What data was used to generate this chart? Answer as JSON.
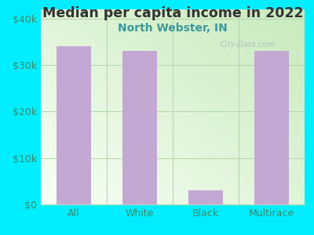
{
  "title": "Median per capita income in 2022",
  "subtitle": "North Webster, IN",
  "categories": [
    "All",
    "White",
    "Black",
    "Multirace"
  ],
  "values": [
    34000,
    33000,
    3000,
    33000
  ],
  "bar_color": "#c4a8d4",
  "background_color": "#00eeff",
  "title_color": "#333333",
  "subtitle_color": "#3a9a9a",
  "tick_label_color": "#3a8a6a",
  "grid_color": "#b8d8b0",
  "ylim": [
    0,
    42000
  ],
  "yticks": [
    0,
    10000,
    20000,
    30000,
    40000
  ],
  "ytick_labels": [
    "$0",
    "$10k",
    "$20k",
    "$30k",
    "$40k"
  ],
  "title_fontsize": 12.5,
  "subtitle_fontsize": 10,
  "watermark_text": "City-Data.com",
  "watermark_color": "#aabbbb",
  "plot_grad_topleft": "#d0eecc",
  "plot_grad_bottomright": "#f8fff8"
}
